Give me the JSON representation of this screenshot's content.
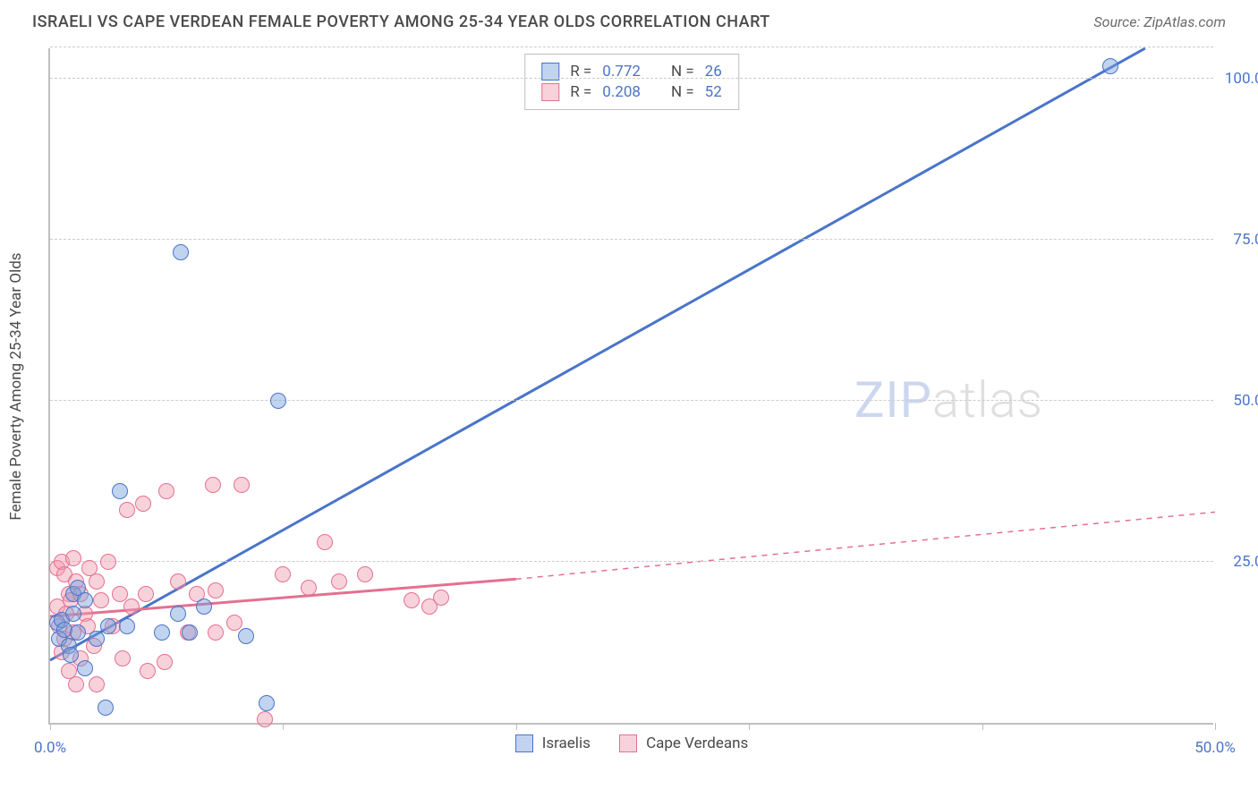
{
  "title": "ISRAELI VS CAPE VERDEAN FEMALE POVERTY AMONG 25-34 YEAR OLDS CORRELATION CHART",
  "source_prefix": "Source: ",
  "source_name": "ZipAtlas.com",
  "ylabel": "Female Poverty Among 25-34 Year Olds",
  "watermark_bold": "ZIP",
  "watermark_thin": "atlas",
  "chart": {
    "type": "scatter",
    "xlim": [
      0,
      50
    ],
    "ylim": [
      0,
      105
    ],
    "xtick_values": [
      0,
      10,
      20,
      30,
      40,
      50
    ],
    "xtick_labels": [
      "0.0%",
      "",
      "",
      "",
      "",
      "50.0%"
    ],
    "ytick_values": [
      25,
      50,
      75,
      100
    ],
    "ytick_labels": [
      "25.0%",
      "50.0%",
      "75.0%",
      "100.0%"
    ],
    "grid_color": "#cccccc",
    "axis_color": "#bfbfbf",
    "background_color": "#ffffff",
    "tick_label_color": "#4a74c9",
    "label_fontsize": 17,
    "title_fontsize": 18,
    "marker_size": 18
  },
  "series": {
    "a": {
      "label": "Israelis",
      "color_fill": "rgba(117,160,219,0.45)",
      "color_stroke": "#4a74c9",
      "R_label": "R =",
      "R": "0.772",
      "N_label": "N =",
      "N": "26",
      "trend": {
        "x1": 0,
        "y1": 10,
        "x2": 47,
        "y2": 105,
        "dash": "none",
        "width": 3
      },
      "points": [
        [
          0.3,
          15.5
        ],
        [
          0.5,
          16
        ],
        [
          0.4,
          13
        ],
        [
          0.6,
          14.5
        ],
        [
          0.8,
          12
        ],
        [
          1.0,
          17
        ],
        [
          1.0,
          20
        ],
        [
          1.2,
          14
        ],
        [
          1.2,
          21
        ],
        [
          1.5,
          19
        ],
        [
          1.5,
          8.5
        ],
        [
          2.0,
          13
        ],
        [
          2.4,
          2.3
        ],
        [
          2.5,
          15
        ],
        [
          3.0,
          36
        ],
        [
          3.3,
          15
        ],
        [
          4.8,
          14
        ],
        [
          5.5,
          17
        ],
        [
          5.6,
          73
        ],
        [
          6.0,
          14
        ],
        [
          6.6,
          18
        ],
        [
          8.4,
          13.5
        ],
        [
          9.3,
          3
        ],
        [
          9.8,
          50
        ],
        [
          45.5,
          102
        ],
        [
          0.9,
          10.5
        ]
      ]
    },
    "b": {
      "label": "Cape Verdeans",
      "color_fill": "rgba(239,156,176,0.45)",
      "color_stroke": "#e57090",
      "R_label": "R =",
      "R": "0.208",
      "N_label": "N =",
      "N": "52",
      "trend_solid": {
        "x1": 0,
        "y1": 16.8,
        "x2": 20,
        "y2": 22.6,
        "width": 3
      },
      "trend_dash": {
        "x1": 20,
        "y1": 22.6,
        "x2": 50,
        "y2": 33,
        "width": 1.5
      },
      "points": [
        [
          0.3,
          18
        ],
        [
          0.3,
          24
        ],
        [
          0.4,
          15
        ],
        [
          0.5,
          25
        ],
        [
          0.5,
          11
        ],
        [
          0.6,
          13
        ],
        [
          0.6,
          23
        ],
        [
          0.7,
          17
        ],
        [
          0.8,
          20
        ],
        [
          0.8,
          8
        ],
        [
          0.9,
          19
        ],
        [
          1.0,
          25.5
        ],
        [
          1.0,
          14
        ],
        [
          1.1,
          22
        ],
        [
          1.1,
          6
        ],
        [
          1.3,
          20
        ],
        [
          1.3,
          10
        ],
        [
          1.5,
          17
        ],
        [
          1.6,
          15
        ],
        [
          1.7,
          24
        ],
        [
          1.9,
          12
        ],
        [
          2.0,
          22
        ],
        [
          2.0,
          6
        ],
        [
          2.2,
          19
        ],
        [
          2.5,
          25
        ],
        [
          2.7,
          15
        ],
        [
          3.0,
          20
        ],
        [
          3.1,
          10
        ],
        [
          3.3,
          33
        ],
        [
          3.5,
          18
        ],
        [
          4.0,
          34
        ],
        [
          4.1,
          20
        ],
        [
          4.2,
          8
        ],
        [
          4.9,
          9.5
        ],
        [
          5.0,
          36
        ],
        [
          5.5,
          22
        ],
        [
          5.9,
          14
        ],
        [
          6.3,
          20
        ],
        [
          7.0,
          37
        ],
        [
          7.1,
          20.5
        ],
        [
          7.1,
          14
        ],
        [
          7.9,
          15.5
        ],
        [
          8.2,
          37
        ],
        [
          9.2,
          0.5
        ],
        [
          10.0,
          23
        ],
        [
          11.1,
          21
        ],
        [
          11.8,
          28
        ],
        [
          12.4,
          22
        ],
        [
          15.5,
          19
        ],
        [
          16.3,
          18
        ],
        [
          16.8,
          19.5
        ],
        [
          13.5,
          23
        ]
      ]
    }
  },
  "bottom_legend": {
    "a": "Israelis",
    "b": "Cape Verdeans"
  }
}
